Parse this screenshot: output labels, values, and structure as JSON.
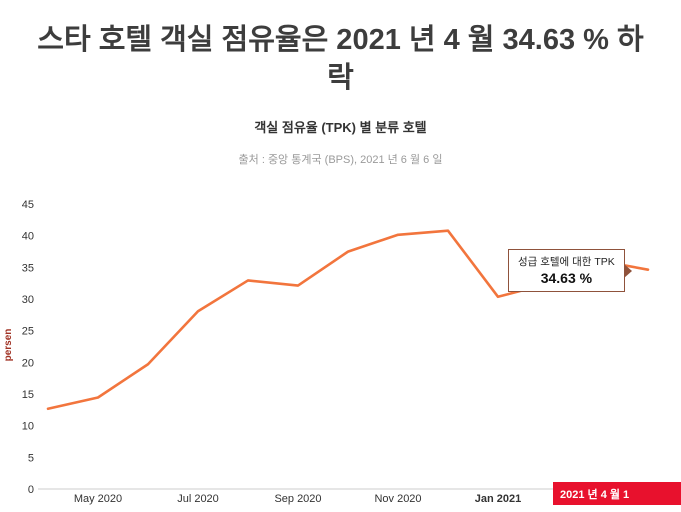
{
  "header": {
    "title": "스타 호텔 객실 점유율은 2021 년 4 월 34.63 % 하락",
    "subtitle": "객실 점유율 (TPK) 별 분류 호텔",
    "source": "출처 : 중앙 통계국 (BPS), 2021 년 6 월 6 일"
  },
  "annotation": {
    "label": "성급 호텔에 대한 TPK",
    "value": "34.63 %"
  },
  "colors": {
    "line": "#F2753D",
    "highlight_bg": "#E8112D",
    "highlight_text": "#FFFFFF",
    "annotation_border": "#8F523B",
    "axis_title": "#A03123",
    "title_text": "#3D3D3D",
    "source_text": "#9A9A9A",
    "tick_text": "#333333",
    "axis_line": "#CCCCCC"
  },
  "chart_data": {
    "type": "line",
    "title": "객실 점유율 (TPK) 별 분류 호텔",
    "series_name": "성급 호텔에 대한 TPK",
    "x": [
      "Apr 2020",
      "May 2020",
      "Jun 2020",
      "Jul 2020",
      "Aug 2020",
      "Sep 2020",
      "Oct 2020",
      "Nov 2020",
      "Dec 2020",
      "Jan 2021",
      "Feb 2021",
      "Mar 2021",
      "Apr 2021"
    ],
    "values": [
      12.67,
      14.45,
      19.7,
      28.07,
      32.93,
      32.12,
      37.48,
      40.14,
      40.79,
      30.35,
      32.4,
      36.07,
      34.63
    ],
    "ylabel": "persen",
    "ylim": [
      0,
      45
    ],
    "yticks": [
      0,
      5,
      10,
      15,
      20,
      25,
      30,
      35,
      40,
      45
    ],
    "xticks": [
      {
        "label": "May 2020",
        "index": 1,
        "bold": false
      },
      {
        "label": "Jul 2020",
        "index": 3,
        "bold": false
      },
      {
        "label": "Sep 2020",
        "index": 5,
        "bold": false
      },
      {
        "label": "Nov 2020",
        "index": 7,
        "bold": false
      },
      {
        "label": "Jan 2021",
        "index": 9,
        "bold": true
      }
    ],
    "highlight_xtick": {
      "label": "2021 년 4 월 1",
      "index": 12
    },
    "grid": false,
    "legend": "none"
  }
}
